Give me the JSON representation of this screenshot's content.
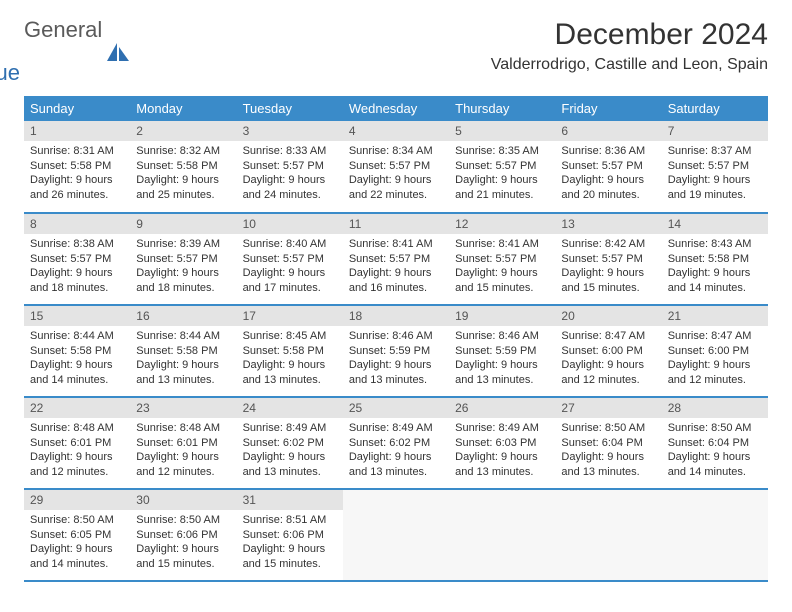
{
  "brand": {
    "part1": "General",
    "part2": "Blue"
  },
  "title": "December 2024",
  "location": "Valderrodrigo, Castille and Leon, Spain",
  "colors": {
    "header_bg": "#3a8bc9",
    "header_text": "#ffffff",
    "daynum_bg": "#e4e4e4",
    "row_border": "#3a8bc9",
    "brand_gray": "#5a5a5a",
    "brand_blue": "#2f6fb0"
  },
  "weekdays": [
    "Sunday",
    "Monday",
    "Tuesday",
    "Wednesday",
    "Thursday",
    "Friday",
    "Saturday"
  ],
  "days": [
    {
      "n": "1",
      "sunrise": "8:31 AM",
      "sunset": "5:58 PM",
      "daylight": "9 hours and 26 minutes."
    },
    {
      "n": "2",
      "sunrise": "8:32 AM",
      "sunset": "5:58 PM",
      "daylight": "9 hours and 25 minutes."
    },
    {
      "n": "3",
      "sunrise": "8:33 AM",
      "sunset": "5:57 PM",
      "daylight": "9 hours and 24 minutes."
    },
    {
      "n": "4",
      "sunrise": "8:34 AM",
      "sunset": "5:57 PM",
      "daylight": "9 hours and 22 minutes."
    },
    {
      "n": "5",
      "sunrise": "8:35 AM",
      "sunset": "5:57 PM",
      "daylight": "9 hours and 21 minutes."
    },
    {
      "n": "6",
      "sunrise": "8:36 AM",
      "sunset": "5:57 PM",
      "daylight": "9 hours and 20 minutes."
    },
    {
      "n": "7",
      "sunrise": "8:37 AM",
      "sunset": "5:57 PM",
      "daylight": "9 hours and 19 minutes."
    },
    {
      "n": "8",
      "sunrise": "8:38 AM",
      "sunset": "5:57 PM",
      "daylight": "9 hours and 18 minutes."
    },
    {
      "n": "9",
      "sunrise": "8:39 AM",
      "sunset": "5:57 PM",
      "daylight": "9 hours and 18 minutes."
    },
    {
      "n": "10",
      "sunrise": "8:40 AM",
      "sunset": "5:57 PM",
      "daylight": "9 hours and 17 minutes."
    },
    {
      "n": "11",
      "sunrise": "8:41 AM",
      "sunset": "5:57 PM",
      "daylight": "9 hours and 16 minutes."
    },
    {
      "n": "12",
      "sunrise": "8:41 AM",
      "sunset": "5:57 PM",
      "daylight": "9 hours and 15 minutes."
    },
    {
      "n": "13",
      "sunrise": "8:42 AM",
      "sunset": "5:57 PM",
      "daylight": "9 hours and 15 minutes."
    },
    {
      "n": "14",
      "sunrise": "8:43 AM",
      "sunset": "5:58 PM",
      "daylight": "9 hours and 14 minutes."
    },
    {
      "n": "15",
      "sunrise": "8:44 AM",
      "sunset": "5:58 PM",
      "daylight": "9 hours and 14 minutes."
    },
    {
      "n": "16",
      "sunrise": "8:44 AM",
      "sunset": "5:58 PM",
      "daylight": "9 hours and 13 minutes."
    },
    {
      "n": "17",
      "sunrise": "8:45 AM",
      "sunset": "5:58 PM",
      "daylight": "9 hours and 13 minutes."
    },
    {
      "n": "18",
      "sunrise": "8:46 AM",
      "sunset": "5:59 PM",
      "daylight": "9 hours and 13 minutes."
    },
    {
      "n": "19",
      "sunrise": "8:46 AM",
      "sunset": "5:59 PM",
      "daylight": "9 hours and 13 minutes."
    },
    {
      "n": "20",
      "sunrise": "8:47 AM",
      "sunset": "6:00 PM",
      "daylight": "9 hours and 12 minutes."
    },
    {
      "n": "21",
      "sunrise": "8:47 AM",
      "sunset": "6:00 PM",
      "daylight": "9 hours and 12 minutes."
    },
    {
      "n": "22",
      "sunrise": "8:48 AM",
      "sunset": "6:01 PM",
      "daylight": "9 hours and 12 minutes."
    },
    {
      "n": "23",
      "sunrise": "8:48 AM",
      "sunset": "6:01 PM",
      "daylight": "9 hours and 12 minutes."
    },
    {
      "n": "24",
      "sunrise": "8:49 AM",
      "sunset": "6:02 PM",
      "daylight": "9 hours and 13 minutes."
    },
    {
      "n": "25",
      "sunrise": "8:49 AM",
      "sunset": "6:02 PM",
      "daylight": "9 hours and 13 minutes."
    },
    {
      "n": "26",
      "sunrise": "8:49 AM",
      "sunset": "6:03 PM",
      "daylight": "9 hours and 13 minutes."
    },
    {
      "n": "27",
      "sunrise": "8:50 AM",
      "sunset": "6:04 PM",
      "daylight": "9 hours and 13 minutes."
    },
    {
      "n": "28",
      "sunrise": "8:50 AM",
      "sunset": "6:04 PM",
      "daylight": "9 hours and 14 minutes."
    },
    {
      "n": "29",
      "sunrise": "8:50 AM",
      "sunset": "6:05 PM",
      "daylight": "9 hours and 14 minutes."
    },
    {
      "n": "30",
      "sunrise": "8:50 AM",
      "sunset": "6:06 PM",
      "daylight": "9 hours and 15 minutes."
    },
    {
      "n": "31",
      "sunrise": "8:51 AM",
      "sunset": "6:06 PM",
      "daylight": "9 hours and 15 minutes."
    }
  ],
  "labels": {
    "sunrise": "Sunrise:",
    "sunset": "Sunset:",
    "daylight": "Daylight:"
  }
}
